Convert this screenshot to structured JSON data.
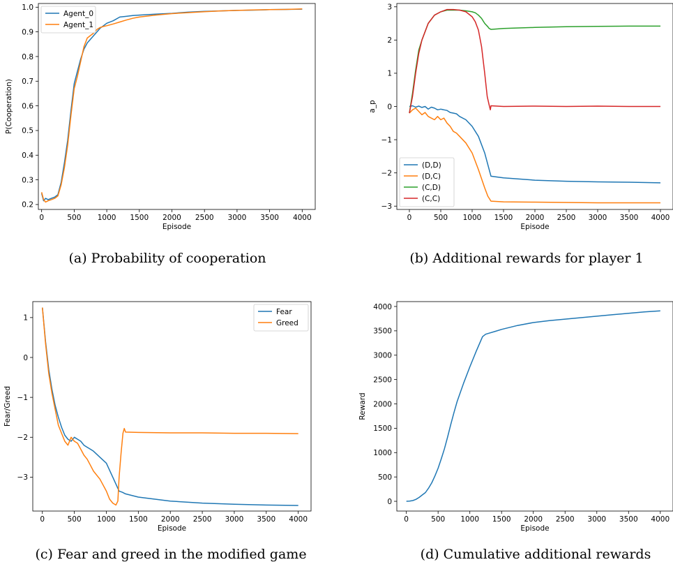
{
  "chart_data": [
    {
      "type": "line",
      "caption": "(a) Probability of cooperation",
      "xlabel": "Episode",
      "ylabel": "P(Cooperation)",
      "xlim": [
        -50,
        4200
      ],
      "ylim": [
        0.18,
        1.015
      ],
      "xticks": [
        0,
        500,
        1000,
        1500,
        2000,
        2500,
        3000,
        3500,
        4000
      ],
      "yticks": [
        0.2,
        0.3,
        0.4,
        0.5,
        0.6,
        0.7,
        0.8,
        0.9,
        1.0
      ],
      "ytick_labels": [
        "0.2",
        "0.3",
        "0.4",
        "0.5",
        "0.6",
        "0.7",
        "0.8",
        "0.9",
        "1.0"
      ],
      "legend_position": "top-left",
      "grid": false,
      "series": [
        {
          "name": "Agent_0",
          "color": "#1f77b4",
          "x": [
            0,
            30,
            60,
            100,
            150,
            200,
            250,
            300,
            350,
            400,
            450,
            500,
            550,
            600,
            650,
            700,
            750,
            800,
            850,
            900,
            950,
            1000,
            1100,
            1200,
            1300,
            1400,
            1500,
            1750,
            2000,
            2250,
            2500,
            2750,
            3000,
            3250,
            3500,
            3750,
            4000
          ],
          "y": [
            0.245,
            0.215,
            0.225,
            0.22,
            0.225,
            0.23,
            0.24,
            0.29,
            0.37,
            0.46,
            0.58,
            0.69,
            0.74,
            0.79,
            0.83,
            0.855,
            0.87,
            0.885,
            0.9,
            0.915,
            0.925,
            0.935,
            0.945,
            0.96,
            0.963,
            0.966,
            0.968,
            0.972,
            0.975,
            0.98,
            0.983,
            0.985,
            0.987,
            0.988,
            0.99,
            0.991,
            0.992
          ]
        },
        {
          "name": "Agent_1",
          "color": "#ff7f0e",
          "x": [
            0,
            30,
            60,
            100,
            150,
            200,
            250,
            300,
            350,
            400,
            450,
            500,
            550,
            600,
            650,
            700,
            750,
            800,
            850,
            900,
            950,
            1000,
            1100,
            1200,
            1300,
            1400,
            1500,
            1750,
            2000,
            2250,
            2500,
            2750,
            3000,
            3250,
            3500,
            3750,
            4000
          ],
          "y": [
            0.25,
            0.22,
            0.21,
            0.215,
            0.22,
            0.225,
            0.235,
            0.28,
            0.35,
            0.44,
            0.56,
            0.67,
            0.72,
            0.78,
            0.84,
            0.875,
            0.885,
            0.895,
            0.91,
            0.918,
            0.922,
            0.925,
            0.932,
            0.94,
            0.948,
            0.955,
            0.96,
            0.968,
            0.974,
            0.978,
            0.982,
            0.985,
            0.987,
            0.989,
            0.99,
            0.991,
            0.993
          ]
        }
      ]
    },
    {
      "type": "line",
      "caption": "(b) Additional rewards for player 1",
      "xlabel": "Episode",
      "ylabel": "a_p",
      "xlim": [
        -200,
        4200
      ],
      "ylim": [
        -3.1,
        3.1
      ],
      "xticks": [
        0,
        500,
        1000,
        1500,
        2000,
        2500,
        3000,
        3500,
        4000
      ],
      "yticks": [
        -3,
        -2,
        -1,
        0,
        1,
        2,
        3
      ],
      "ytick_labels": [
        "−3",
        "−2",
        "−1",
        "0",
        "1",
        "2",
        "3"
      ],
      "legend_position": "bottom-left",
      "grid": false,
      "series": [
        {
          "name": "(D,D)",
          "color": "#1f77b4",
          "x": [
            0,
            50,
            100,
            150,
            200,
            250,
            300,
            350,
            400,
            450,
            500,
            550,
            600,
            650,
            700,
            750,
            800,
            900,
            1000,
            1100,
            1200,
            1250,
            1300,
            1500,
            2000,
            2500,
            3000,
            3500,
            4000
          ],
          "y": [
            0.0,
            0.02,
            -0.02,
            0.01,
            -0.03,
            0.0,
            -0.08,
            -0.02,
            -0.05,
            -0.1,
            -0.08,
            -0.1,
            -0.12,
            -0.18,
            -0.2,
            -0.22,
            -0.3,
            -0.4,
            -0.6,
            -0.9,
            -1.4,
            -1.75,
            -2.1,
            -2.15,
            -2.22,
            -2.25,
            -2.27,
            -2.28,
            -2.3
          ]
        },
        {
          "name": "(D,C)",
          "color": "#ff7f0e",
          "x": [
            0,
            50,
            100,
            150,
            200,
            250,
            300,
            350,
            400,
            450,
            500,
            550,
            600,
            650,
            700,
            750,
            800,
            900,
            1000,
            1100,
            1200,
            1250,
            1300,
            1500,
            2000,
            2500,
            3000,
            3500,
            4000
          ],
          "y": [
            -0.2,
            -0.1,
            -0.05,
            -0.15,
            -0.25,
            -0.18,
            -0.3,
            -0.35,
            -0.4,
            -0.3,
            -0.4,
            -0.35,
            -0.5,
            -0.6,
            -0.75,
            -0.8,
            -0.9,
            -1.1,
            -1.4,
            -1.9,
            -2.45,
            -2.7,
            -2.85,
            -2.87,
            -2.88,
            -2.89,
            -2.9,
            -2.9,
            -2.9
          ]
        },
        {
          "name": "(C,D)",
          "color": "#2ca02c",
          "x": [
            0,
            50,
            100,
            150,
            200,
            300,
            400,
            500,
            600,
            700,
            800,
            900,
            1000,
            1050,
            1100,
            1150,
            1200,
            1250,
            1270,
            1300,
            1500,
            2000,
            2500,
            3000,
            3500,
            4000
          ],
          "y": [
            -0.2,
            0.4,
            1.1,
            1.7,
            2.0,
            2.5,
            2.75,
            2.85,
            2.9,
            2.9,
            2.9,
            2.88,
            2.85,
            2.82,
            2.75,
            2.65,
            2.5,
            2.4,
            2.35,
            2.32,
            2.35,
            2.38,
            2.4,
            2.41,
            2.42,
            2.42
          ]
        },
        {
          "name": "(C,C)",
          "color": "#d62728",
          "x": [
            0,
            50,
            100,
            150,
            200,
            300,
            400,
            500,
            600,
            700,
            800,
            900,
            1000,
            1050,
            1100,
            1150,
            1200,
            1240,
            1270,
            1290,
            1300,
            1500,
            2000,
            2500,
            3000,
            3500,
            4000
          ],
          "y": [
            -0.2,
            0.3,
            1.0,
            1.6,
            2.0,
            2.5,
            2.75,
            2.85,
            2.92,
            2.92,
            2.9,
            2.85,
            2.7,
            2.55,
            2.3,
            1.8,
            1.0,
            0.3,
            0.05,
            -0.1,
            0.02,
            0.0,
            0.01,
            0.0,
            0.01,
            0.0,
            0.0
          ]
        }
      ]
    },
    {
      "type": "line",
      "caption": "(c) Fear and greed in the modified game",
      "xlabel": "Episode",
      "ylabel": "Fear/Greed",
      "xlim": [
        -150,
        4200
      ],
      "ylim": [
        -3.85,
        1.4
      ],
      "xticks": [
        0,
        500,
        1000,
        1500,
        2000,
        2500,
        3000,
        3500,
        4000
      ],
      "yticks": [
        -3,
        -2,
        -1,
        0,
        1
      ],
      "ytick_labels": [
        "−3",
        "−2",
        "−1",
        "0",
        "1"
      ],
      "legend_position": "top-right",
      "grid": false,
      "series": [
        {
          "name": "Fear",
          "color": "#1f77b4",
          "x": [
            0,
            50,
            100,
            150,
            200,
            250,
            300,
            350,
            400,
            450,
            500,
            550,
            600,
            650,
            700,
            750,
            800,
            900,
            1000,
            1100,
            1200,
            1250,
            1300,
            1500,
            2000,
            2500,
            3000,
            3500,
            4000
          ],
          "y": [
            1.25,
            0.4,
            -0.3,
            -0.8,
            -1.2,
            -1.5,
            -1.75,
            -1.95,
            -2.05,
            -2.1,
            -2.0,
            -2.05,
            -2.1,
            -2.2,
            -2.25,
            -2.3,
            -2.35,
            -2.5,
            -2.65,
            -3.0,
            -3.35,
            -3.38,
            -3.42,
            -3.5,
            -3.6,
            -3.65,
            -3.68,
            -3.7,
            -3.71
          ]
        },
        {
          "name": "Greed",
          "color": "#ff7f0e",
          "x": [
            0,
            50,
            100,
            150,
            200,
            250,
            300,
            350,
            400,
            450,
            500,
            550,
            600,
            650,
            700,
            750,
            800,
            900,
            1000,
            1050,
            1100,
            1150,
            1180,
            1200,
            1230,
            1260,
            1280,
            1300,
            1500,
            2000,
            2500,
            3000,
            3500,
            4000
          ],
          "y": [
            1.25,
            0.35,
            -0.4,
            -0.9,
            -1.3,
            -1.7,
            -1.9,
            -2.1,
            -2.2,
            -2.0,
            -2.1,
            -2.15,
            -2.3,
            -2.45,
            -2.55,
            -2.7,
            -2.85,
            -3.05,
            -3.35,
            -3.55,
            -3.65,
            -3.7,
            -3.6,
            -3.0,
            -2.4,
            -1.9,
            -1.78,
            -1.87,
            -1.88,
            -1.89,
            -1.89,
            -1.9,
            -1.9,
            -1.91
          ]
        }
      ]
    },
    {
      "type": "line",
      "caption": "(d) Cumulative additional rewards",
      "xlabel": "Episode",
      "ylabel": "Reward",
      "xlim": [
        -150,
        4200
      ],
      "ylim": [
        -200,
        4100
      ],
      "xticks": [
        0,
        500,
        1000,
        1500,
        2000,
        2500,
        3000,
        3500,
        4000
      ],
      "yticks": [
        0,
        500,
        1000,
        1500,
        2000,
        2500,
        3000,
        3500,
        4000
      ],
      "ytick_labels": [
        "0",
        "500",
        "1000",
        "1500",
        "2000",
        "2500",
        "3000",
        "3500",
        "4000"
      ],
      "legend_position": "none",
      "grid": false,
      "series": [
        {
          "name": "",
          "color": "#1f77b4",
          "x": [
            0,
            50,
            100,
            150,
            200,
            250,
            300,
            350,
            400,
            450,
            500,
            550,
            600,
            650,
            700,
            750,
            800,
            900,
            1000,
            1100,
            1200,
            1250,
            1300,
            1400,
            1500,
            1750,
            2000,
            2250,
            2500,
            2750,
            3000,
            3250,
            3500,
            3750,
            4000
          ],
          "y": [
            0,
            5,
            15,
            40,
            80,
            130,
            180,
            270,
            380,
            520,
            680,
            870,
            1080,
            1320,
            1580,
            1820,
            2050,
            2420,
            2760,
            3080,
            3380,
            3430,
            3450,
            3490,
            3530,
            3610,
            3670,
            3710,
            3740,
            3770,
            3800,
            3830,
            3860,
            3890,
            3910
          ]
        }
      ]
    }
  ]
}
